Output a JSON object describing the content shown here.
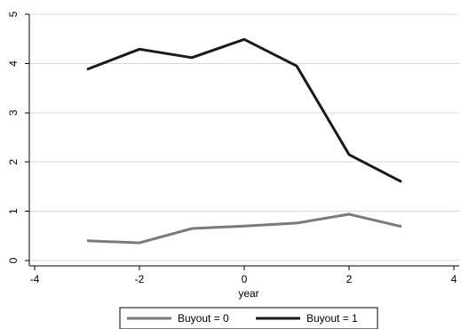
{
  "chart_data": {
    "type": "line",
    "xlabel": "year",
    "ylabel": "",
    "xlim": [
      -4,
      4
    ],
    "ylim": [
      0,
      5
    ],
    "x_ticks": [
      "-4",
      "-2",
      "0",
      "2",
      "4"
    ],
    "y_ticks": [
      "0",
      "1",
      "2",
      "3",
      "4",
      "5"
    ],
    "x_tick_values": [
      -4,
      -2,
      0,
      2,
      4
    ],
    "y_tick_values": [
      0,
      1,
      2,
      3,
      4,
      5
    ],
    "grid": true,
    "legend_position": "bottom",
    "x": [
      -3,
      -2,
      -1,
      0,
      1,
      2,
      3
    ],
    "series": [
      {
        "name": "Buyout = 0",
        "color": "#7a7a7a",
        "values": [
          0.4,
          0.36,
          0.65,
          0.7,
          0.76,
          0.94,
          0.69
        ]
      },
      {
        "name": "Buyout = 1",
        "color": "#1a1a1a",
        "values": [
          3.88,
          4.29,
          4.12,
          4.49,
          3.95,
          2.15,
          1.6
        ]
      }
    ]
  }
}
